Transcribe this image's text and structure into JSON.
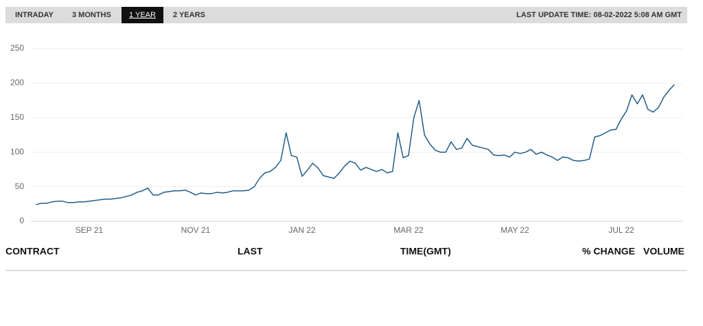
{
  "tabs": [
    "INTRADAY",
    "3 MONTHS",
    "1 YEAR",
    "2 YEARS"
  ],
  "active_tab": 2,
  "last_update": "LAST UPDATE TIME: 08-02-2022 5:08 AM GMT",
  "chart_data": {
    "type": "line",
    "categories": [
      null,
      null,
      null,
      null,
      null,
      null,
      null,
      null,
      null,
      null,
      "SEP 21",
      null,
      null,
      null,
      null,
      null,
      null,
      null,
      null,
      null,
      null,
      null,
      null,
      null,
      null,
      null,
      null,
      null,
      null,
      null,
      "NOV 21",
      null,
      null,
      null,
      null,
      null,
      null,
      null,
      null,
      null,
      null,
      null,
      null,
      null,
      null,
      null,
      null,
      null,
      null,
      null,
      "JAN 22",
      null,
      null,
      null,
      null,
      null,
      null,
      null,
      null,
      null,
      null,
      null,
      null,
      null,
      null,
      null,
      null,
      null,
      null,
      null,
      "MAR 22",
      null,
      null,
      null,
      null,
      null,
      null,
      null,
      null,
      null,
      null,
      null,
      null,
      null,
      null,
      null,
      null,
      null,
      null,
      null,
      "MAY 22",
      null,
      null,
      null,
      null,
      null,
      null,
      null,
      null,
      null,
      null,
      null,
      null,
      null,
      null,
      null,
      null,
      null,
      null,
      null,
      "JUL 22",
      null,
      null,
      null,
      null,
      null,
      null,
      null,
      null,
      null,
      null
    ],
    "values": [
      24,
      26,
      26,
      28,
      29,
      29,
      27,
      27,
      28,
      28,
      29,
      30,
      31,
      32,
      32,
      33,
      34,
      36,
      38,
      42,
      44,
      48,
      38,
      38,
      42,
      43,
      44,
      44,
      45,
      42,
      38,
      41,
      40,
      40,
      42,
      41,
      42,
      44,
      44,
      44,
      45,
      50,
      62,
      70,
      72,
      78,
      88,
      128,
      95,
      93,
      65,
      74,
      84,
      77,
      66,
      64,
      62,
      70,
      80,
      87,
      84,
      74,
      78,
      75,
      72,
      75,
      70,
      72,
      128,
      92,
      95,
      150,
      175,
      125,
      112,
      103,
      100,
      100,
      115,
      104,
      106,
      120,
      110,
      108,
      106,
      104,
      96,
      95,
      96,
      93,
      100,
      98,
      100,
      104,
      97,
      100,
      96,
      93,
      88,
      93,
      92,
      88,
      87,
      88,
      90,
      122,
      124,
      128,
      132,
      133,
      148,
      160,
      183,
      170,
      183,
      162,
      158,
      165,
      180,
      190,
      198
    ],
    "color": "#1f5b8a",
    "ylim": [
      0,
      250
    ],
    "yticks": [
      0,
      50,
      100,
      150,
      200,
      250
    ],
    "grid": true
  },
  "table": {
    "headers": [
      "CONTRACT",
      "LAST",
      "TIME(GMT)",
      "% CHANGE",
      "VOLUME"
    ]
  }
}
